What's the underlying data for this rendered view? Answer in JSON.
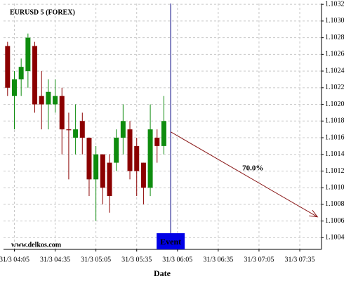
{
  "chart_data": {
    "type": "candlestick",
    "title": "EURUSD 5 (FOREX)",
    "watermark": "www.delkos.com",
    "x_label": "Date",
    "x": [
      "31/3 04:00",
      "31/3 04:05",
      "31/3 04:10",
      "31/3 04:15",
      "31/3 04:20",
      "31/3 04:25",
      "31/3 04:30",
      "31/3 04:35",
      "31/3 04:40",
      "31/3 04:45",
      "31/3 04:50",
      "31/3 04:55",
      "31/3 05:00",
      "31/3 05:05",
      "31/3 05:10",
      "31/3 05:15",
      "31/3 05:20",
      "31/3 05:25",
      "31/3 05:30",
      "31/3 05:35",
      "31/3 05:40",
      "31/3 05:45",
      "31/3 05:50",
      "31/3 05:55"
    ],
    "open": [
      1.1027,
      1.1021,
      1.1023,
      1.1024,
      1.1027,
      1.1021,
      1.102,
      1.102,
      1.1021,
      1.1017,
      1.1016,
      1.1018,
      1.1016,
      1.1011,
      1.1014,
      1.1013,
      1.1013,
      1.1016,
      1.1017,
      1.1015,
      1.1013,
      1.101,
      1.1016,
      1.1015
    ],
    "high": [
      1.10275,
      1.1024,
      1.10255,
      1.10285,
      1.10275,
      1.1024,
      1.1023,
      1.1023,
      1.1022,
      1.1019,
      1.102,
      1.1019,
      1.1016,
      1.1015,
      1.1014,
      1.1014,
      1.1017,
      1.102,
      1.1018,
      1.1016,
      1.1013,
      1.102,
      1.1017,
      1.1021
    ],
    "low": [
      1.1021,
      1.1017,
      1.1021,
      1.1022,
      1.1019,
      1.1017,
      1.1017,
      1.1019,
      1.1014,
      1.1011,
      1.1014,
      1.1014,
      1.1009,
      1.1006,
      1.1008,
      1.1007,
      1.1012,
      1.1014,
      1.1011,
      1.1009,
      1.1008,
      1.1009,
      1.1013,
      1.1014
    ],
    "close": [
      1.1022,
      1.1023,
      1.10245,
      1.1028,
      1.102,
      1.102,
      1.10215,
      1.1021,
      1.1017,
      1.10169,
      1.1017,
      1.1016,
      1.1011,
      1.1014,
      1.101,
      1.1009,
      1.1016,
      1.1018,
      1.1012,
      1.1012,
      1.101,
      1.1017,
      1.1015,
      1.1018
    ],
    "up_color": "#0e8c0e",
    "down_color": "#8b0000",
    "xlim": [
      "31/3 03:57",
      "31/3 07:51"
    ],
    "xticks": [
      "31/3 04:05",
      "31/3 04:35",
      "31/3 05:05",
      "31/3 05:35",
      "31/3 06:05",
      "31/3 06:35",
      "31/3 07:05",
      "31/3 07:35"
    ],
    "ylim": [
      1.10026,
      1.10321
    ],
    "yticks": [
      1.1004,
      1.1006,
      1.1008,
      {
        "value": 1.101,
        "label": "1.1010"
      },
      1.1012,
      1.1014,
      1.1016,
      1.1018,
      {
        "value": 1.102,
        "label": "1.1020"
      },
      1.1022,
      1.1024,
      1.1026,
      1.1028,
      {
        "value": 1.103,
        "label": "1.1030"
      },
      1.1032
    ],
    "grid": true,
    "event": {
      "x": "31/3 06:00",
      "label": "Event",
      "color": "#0000e6"
    },
    "forecast": {
      "start": {
        "x": "31/3 06:00",
        "y": 1.10167
      },
      "end": {
        "x": "31/3 07:48",
        "y": 1.10065
      },
      "label": "70.0%",
      "color": "#8b1a1a"
    }
  }
}
